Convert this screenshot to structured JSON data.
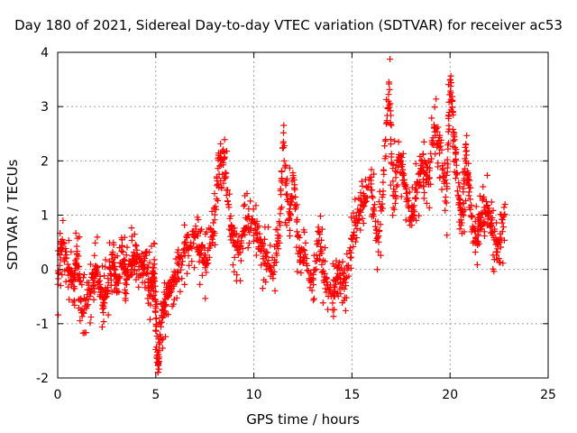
{
  "chart_data": {
    "type": "scatter",
    "title": "Day 180 of 2021, Sidereal Day-to-day VTEC variation (SDTVAR) for receiver ac53",
    "xlabel": "GPS time / hours",
    "ylabel": "SDTVAR / TECUs",
    "xlim": [
      0,
      25
    ],
    "ylim": [
      -2,
      4
    ],
    "xticks": [
      "0",
      "5",
      "10",
      "15",
      "20",
      "25"
    ],
    "yticks": [
      "-2",
      "-1",
      "0",
      "1",
      "2",
      "3",
      "4"
    ],
    "grid": true,
    "marker": "+",
    "series": [
      {
        "name": "SDTVAR",
        "color": "#ff0000",
        "x": [
          0.0,
          0.2,
          0.5,
          0.8,
          1.0,
          1.2,
          1.5,
          1.8,
          2.0,
          2.3,
          2.5,
          2.8,
          3.0,
          3.3,
          3.5,
          3.8,
          4.0,
          4.3,
          4.5,
          4.7,
          4.9,
          5.0,
          5.1,
          5.3,
          5.5,
          5.7,
          6.0,
          6.3,
          6.6,
          7.0,
          7.3,
          7.6,
          8.0,
          8.2,
          8.5,
          8.8,
          9.0,
          9.3,
          9.6,
          10.0,
          10.3,
          10.6,
          11.0,
          11.3,
          11.5,
          11.8,
          12.0,
          12.3,
          12.6,
          13.0,
          13.3,
          13.6,
          14.0,
          14.3,
          14.6,
          15.0,
          15.3,
          15.6,
          16.0,
          16.3,
          16.6,
          16.9,
          17.1,
          17.4,
          17.7,
          18.0,
          18.3,
          18.6,
          18.9,
          19.2,
          19.5,
          19.8,
          20.0,
          20.2,
          20.4,
          20.6,
          20.8,
          21.0,
          21.3,
          21.6,
          21.9,
          22.2,
          22.5,
          22.8
        ],
        "y": [
          -0.2,
          0.5,
          0.1,
          -0.3,
          0.4,
          -0.8,
          -0.5,
          -0.2,
          0.0,
          -0.6,
          -0.4,
          0.2,
          -0.3,
          0.3,
          -0.2,
          0.1,
          0.3,
          -0.1,
          0.2,
          -0.4,
          0.1,
          -0.9,
          -1.8,
          -0.8,
          -0.6,
          -0.3,
          -0.2,
          0.2,
          0.5,
          0.6,
          0.4,
          0.1,
          0.8,
          2.2,
          2.0,
          0.7,
          0.6,
          0.4,
          0.9,
          0.8,
          0.5,
          0.2,
          0.0,
          0.6,
          2.5,
          0.8,
          1.7,
          0.3,
          0.2,
          -0.4,
          0.7,
          -0.2,
          -0.5,
          0.0,
          -0.3,
          0.5,
          1.0,
          1.3,
          1.6,
          0.4,
          1.7,
          3.4,
          1.3,
          2.1,
          1.6,
          0.8,
          1.5,
          2.0,
          1.7,
          2.5,
          2.3,
          1.3,
          3.3,
          2.6,
          1.5,
          0.8,
          2.2,
          1.3,
          0.4,
          0.9,
          1.1,
          0.7,
          0.3,
          1.2
        ]
      }
    ]
  }
}
